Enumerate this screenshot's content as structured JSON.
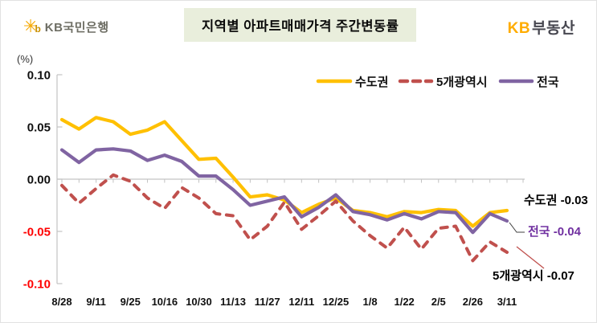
{
  "header": {
    "logo": {
      "mark": "✳",
      "mark_b": "b",
      "text": "KB국민은행"
    },
    "title": "지역별 아파트매매가격 주간변동률",
    "brand": {
      "kb": "KB",
      "name": "부동산"
    }
  },
  "chart_data": {
    "type": "line",
    "title": "지역별 아파트매매가격 주간변동률",
    "ylabel": "(%)",
    "ylim": [
      -0.1,
      0.1
    ],
    "yticks": [
      0.1,
      0.05,
      0.0,
      -0.05,
      -0.1
    ],
    "grid": false,
    "legend_position": "top-right",
    "x_labels": [
      "8/28",
      "9/11",
      "9/25",
      "10/16",
      "10/30",
      "11/13",
      "11/27",
      "12/11",
      "12/25",
      "1/8",
      "1/22",
      "2/5",
      "2/26",
      "3/11"
    ],
    "label_every": 2,
    "negative_tick_color": "#FF0000",
    "series": [
      {
        "name": "수도권",
        "color": "#FFC000",
        "style": "solid",
        "end_label": "수도권 -0.03",
        "end_value": -0.03,
        "values": [
          0.057,
          0.048,
          0.059,
          0.055,
          0.043,
          0.047,
          0.055,
          0.037,
          0.019,
          0.02,
          0.002,
          -0.017,
          -0.015,
          -0.02,
          -0.032,
          -0.024,
          -0.018,
          -0.03,
          -0.032,
          -0.036,
          -0.031,
          -0.032,
          -0.029,
          -0.03,
          -0.045,
          -0.032,
          -0.03
        ]
      },
      {
        "name": "5개광역시",
        "color": "#C0504D",
        "style": "dashed",
        "end_label": "5개광역시 -0.07",
        "end_value": -0.07,
        "values": [
          -0.006,
          -0.023,
          -0.009,
          0.004,
          -0.002,
          -0.018,
          -0.028,
          -0.008,
          -0.018,
          -0.033,
          -0.035,
          -0.058,
          -0.045,
          -0.022,
          -0.048,
          -0.035,
          -0.021,
          -0.04,
          -0.054,
          -0.066,
          -0.046,
          -0.067,
          -0.047,
          -0.045,
          -0.078,
          -0.06,
          -0.07
        ]
      },
      {
        "name": "전국",
        "color": "#8064A2",
        "style": "solid",
        "end_label": "전국 -0.04",
        "end_value": -0.04,
        "annotation_color": "#7030A0",
        "values": [
          0.028,
          0.016,
          0.028,
          0.029,
          0.027,
          0.018,
          0.023,
          0.017,
          0.003,
          0.003,
          -0.01,
          -0.025,
          -0.021,
          -0.017,
          -0.036,
          -0.027,
          -0.015,
          -0.031,
          -0.034,
          -0.039,
          -0.033,
          -0.038,
          -0.031,
          -0.032,
          -0.051,
          -0.033,
          -0.04
        ]
      }
    ]
  }
}
